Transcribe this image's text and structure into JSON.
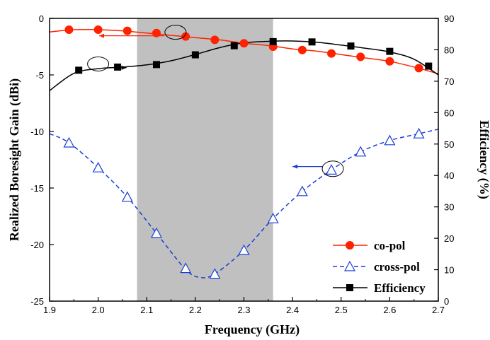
{
  "chart_data": {
    "type": "line",
    "xlabel": "Frequency (GHz)",
    "ylabel_left": "Realized Boresight Gain (dBi)",
    "ylabel_right": "Efficiency (%)",
    "xlim": [
      1.9,
      2.7
    ],
    "ylim_left": [
      -25,
      0
    ],
    "ylim_right": [
      0,
      90
    ],
    "x_ticks": [
      "1.9",
      "2.0",
      "2.1",
      "2.2",
      "2.3",
      "2.4",
      "2.5",
      "2.6",
      "2.7"
    ],
    "y_left_ticks": [
      "0",
      "-5",
      "-10",
      "-15",
      "-20",
      "-25"
    ],
    "y_right_ticks": [
      "0",
      "10",
      "20",
      "30",
      "40",
      "50",
      "60",
      "70",
      "80",
      "90"
    ],
    "shaded_band": {
      "x_start": 2.08,
      "x_end": 2.36,
      "color": "#c0c0c0"
    },
    "legend_position": "bottom-right",
    "series": [
      {
        "name": "co-pol",
        "axis": "left",
        "color": "#ff2200",
        "line_style": "solid",
        "marker": "circle",
        "curve_x": [
          1.9,
          1.95,
          2.0,
          2.05,
          2.1,
          2.15,
          2.2,
          2.25,
          2.3,
          2.35,
          2.4,
          2.45,
          2.5,
          2.55,
          2.6,
          2.65,
          2.7
        ],
        "curve_y": [
          -1.2,
          -1.0,
          -1.0,
          -1.1,
          -1.3,
          -1.5,
          -1.7,
          -1.9,
          -2.2,
          -2.4,
          -2.7,
          -2.9,
          -3.2,
          -3.5,
          -3.8,
          -4.3,
          -4.9
        ],
        "markers_x": [
          1.94,
          2.0,
          2.06,
          2.12,
          2.18,
          2.24,
          2.3,
          2.36,
          2.42,
          2.48,
          2.54,
          2.6,
          2.66
        ],
        "markers_y": [
          -1.0,
          -1.0,
          -1.1,
          -1.3,
          -1.6,
          -1.9,
          -2.2,
          -2.5,
          -2.8,
          -3.1,
          -3.4,
          -3.8,
          -4.4
        ]
      },
      {
        "name": "cross-pol",
        "axis": "left",
        "color": "#1a3fd6",
        "line_style": "dashed",
        "marker": "triangle-open",
        "curve_x": [
          1.9,
          1.94,
          2.0,
          2.06,
          2.12,
          2.18,
          2.21,
          2.24,
          2.3,
          2.36,
          2.42,
          2.48,
          2.54,
          2.6,
          2.66,
          2.7
        ],
        "curve_y": [
          -10.2,
          -11.0,
          -13.2,
          -15.8,
          -19.0,
          -22.2,
          -22.9,
          -22.6,
          -20.5,
          -17.7,
          -15.3,
          -13.4,
          -11.8,
          -10.8,
          -10.2,
          -9.8
        ],
        "markers_x": [
          1.94,
          2.0,
          2.06,
          2.12,
          2.18,
          2.24,
          2.3,
          2.36,
          2.42,
          2.48,
          2.54,
          2.6,
          2.66
        ],
        "markers_y": [
          -11.0,
          -13.2,
          -15.8,
          -19.0,
          -22.1,
          -22.6,
          -20.5,
          -17.7,
          -15.3,
          -13.4,
          -11.8,
          -10.8,
          -10.2
        ]
      },
      {
        "name": "Efficiency",
        "axis": "right",
        "color": "#000000",
        "line_style": "solid",
        "marker": "square",
        "curve_x": [
          1.9,
          1.95,
          2.0,
          2.05,
          2.1,
          2.15,
          2.2,
          2.25,
          2.3,
          2.35,
          2.4,
          2.45,
          2.5,
          2.55,
          2.6,
          2.65,
          2.7
        ],
        "curve_y": [
          67.0,
          72.5,
          74.0,
          74.5,
          75.2,
          76.5,
          78.5,
          80.7,
          82.2,
          82.7,
          82.8,
          82.4,
          81.5,
          80.5,
          79.3,
          77.0,
          72.0
        ],
        "markers_x": [
          1.96,
          2.04,
          2.12,
          2.2,
          2.28,
          2.36,
          2.44,
          2.52,
          2.6,
          2.68
        ],
        "markers_y": [
          73.5,
          74.5,
          75.3,
          78.4,
          81.3,
          82.6,
          82.5,
          81.2,
          79.5,
          74.8
        ]
      }
    ]
  }
}
